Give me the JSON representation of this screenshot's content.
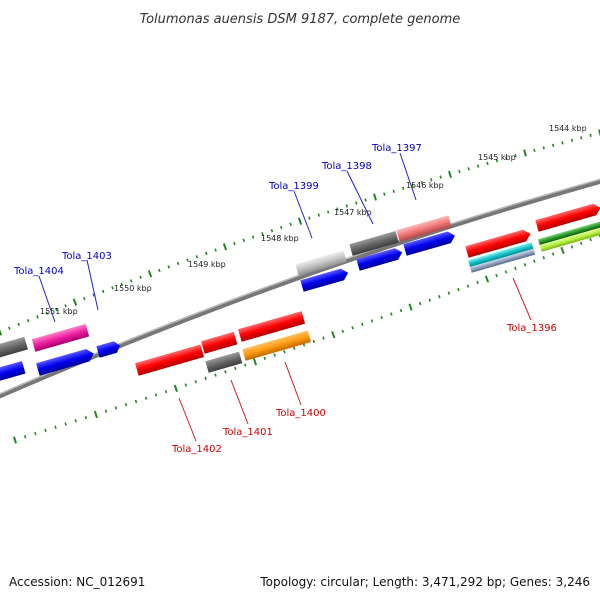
{
  "title": "Tolumonas auensis DSM 9187, complete genome",
  "footer": {
    "accession": "Accession: NC_012691",
    "summary": "Topology: circular; Length: 3,471,292 bp; Genes: 3,246"
  },
  "ruler_labels": [
    "1544 kbp",
    "1545 kbp",
    "1546 kbp",
    "1547 kbp",
    "1548 kbp",
    "1549 kbp",
    "1550 kbp",
    "1551 kbp"
  ],
  "gene_labels_top": [
    "Tola_1397",
    "Tola_1398",
    "Tola_1399",
    "Tola_1403",
    "Tola_1404"
  ],
  "gene_labels_bottom": [
    "Tola_1396",
    "Tola_1400",
    "Tola_1401",
    "Tola_1402"
  ],
  "colors": {
    "label_top": "#0000cc",
    "label_bottom": "#cc0000",
    "ruler": "#228822",
    "backbone": "#888888"
  }
}
